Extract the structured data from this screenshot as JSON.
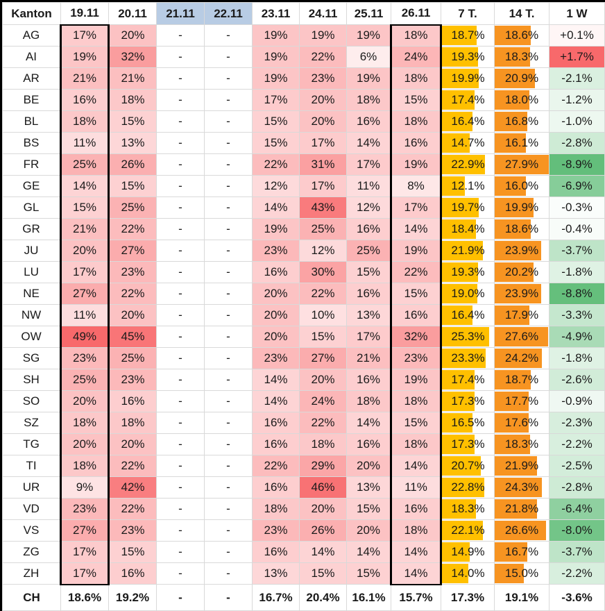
{
  "chart_data": {
    "type": "heatmap",
    "columns": [
      "Kanton",
      "19.11",
      "20.11",
      "21.11",
      "22.11",
      "23.11",
      "24.11",
      "25.11",
      "26.11",
      "7 T.",
      "14 T.",
      "1 W"
    ],
    "highlight_blue_columns": [
      "21.11",
      "22.11"
    ],
    "outlined_columns": [
      "19.11",
      "26.11"
    ],
    "rows": [
      {
        "kanton": "AG",
        "daily": [
          "17%",
          "20%",
          "-",
          "-",
          "19%",
          "19%",
          "19%",
          "18%"
        ],
        "t7": "18.7%",
        "t14": "18.6%",
        "w1": "+0.1%"
      },
      {
        "kanton": "AI",
        "daily": [
          "19%",
          "32%",
          "-",
          "-",
          "19%",
          "22%",
          "6%",
          "24%"
        ],
        "t7": "19.3%",
        "t14": "18.3%",
        "w1": "+1.7%"
      },
      {
        "kanton": "AR",
        "daily": [
          "21%",
          "21%",
          "-",
          "-",
          "19%",
          "23%",
          "19%",
          "18%"
        ],
        "t7": "19.9%",
        "t14": "20.9%",
        "w1": "-2.1%"
      },
      {
        "kanton": "BE",
        "daily": [
          "16%",
          "18%",
          "-",
          "-",
          "17%",
          "20%",
          "18%",
          "15%"
        ],
        "t7": "17.4%",
        "t14": "18.0%",
        "w1": "-1.2%"
      },
      {
        "kanton": "BL",
        "daily": [
          "18%",
          "15%",
          "-",
          "-",
          "15%",
          "20%",
          "16%",
          "18%"
        ],
        "t7": "16.4%",
        "t14": "16.8%",
        "w1": "-1.0%"
      },
      {
        "kanton": "BS",
        "daily": [
          "11%",
          "13%",
          "-",
          "-",
          "15%",
          "17%",
          "14%",
          "16%"
        ],
        "t7": "14.7%",
        "t14": "16.1%",
        "w1": "-2.8%"
      },
      {
        "kanton": "FR",
        "daily": [
          "25%",
          "26%",
          "-",
          "-",
          "22%",
          "31%",
          "17%",
          "19%"
        ],
        "t7": "22.9%",
        "t14": "27.9%",
        "w1": "-8.9%"
      },
      {
        "kanton": "GE",
        "daily": [
          "14%",
          "15%",
          "-",
          "-",
          "12%",
          "17%",
          "11%",
          "8%"
        ],
        "t7": "12.1%",
        "t14": "16.0%",
        "w1": "-6.9%"
      },
      {
        "kanton": "GL",
        "daily": [
          "15%",
          "25%",
          "-",
          "-",
          "14%",
          "43%",
          "12%",
          "17%"
        ],
        "t7": "19.7%",
        "t14": "19.9%",
        "w1": "-0.3%"
      },
      {
        "kanton": "GR",
        "daily": [
          "21%",
          "22%",
          "-",
          "-",
          "19%",
          "25%",
          "16%",
          "14%"
        ],
        "t7": "18.4%",
        "t14": "18.6%",
        "w1": "-0.4%"
      },
      {
        "kanton": "JU",
        "daily": [
          "20%",
          "27%",
          "-",
          "-",
          "23%",
          "12%",
          "25%",
          "19%"
        ],
        "t7": "21.9%",
        "t14": "23.9%",
        "w1": "-3.7%"
      },
      {
        "kanton": "LU",
        "daily": [
          "17%",
          "23%",
          "-",
          "-",
          "16%",
          "30%",
          "15%",
          "22%"
        ],
        "t7": "19.3%",
        "t14": "20.2%",
        "w1": "-1.8%"
      },
      {
        "kanton": "NE",
        "daily": [
          "27%",
          "22%",
          "-",
          "-",
          "20%",
          "22%",
          "16%",
          "15%"
        ],
        "t7": "19.0%",
        "t14": "23.9%",
        "w1": "-8.8%"
      },
      {
        "kanton": "NW",
        "daily": [
          "11%",
          "20%",
          "-",
          "-",
          "20%",
          "10%",
          "13%",
          "16%"
        ],
        "t7": "16.4%",
        "t14": "17.9%",
        "w1": "-3.3%"
      },
      {
        "kanton": "OW",
        "daily": [
          "49%",
          "45%",
          "-",
          "-",
          "20%",
          "15%",
          "17%",
          "32%"
        ],
        "t7": "25.3%",
        "t14": "27.6%",
        "w1": "-4.9%"
      },
      {
        "kanton": "SG",
        "daily": [
          "23%",
          "25%",
          "-",
          "-",
          "23%",
          "27%",
          "21%",
          "23%"
        ],
        "t7": "23.3%",
        "t14": "24.2%",
        "w1": "-1.8%"
      },
      {
        "kanton": "SH",
        "daily": [
          "25%",
          "23%",
          "-",
          "-",
          "14%",
          "20%",
          "16%",
          "19%"
        ],
        "t7": "17.4%",
        "t14": "18.7%",
        "w1": "-2.6%"
      },
      {
        "kanton": "SO",
        "daily": [
          "20%",
          "16%",
          "-",
          "-",
          "14%",
          "24%",
          "18%",
          "18%"
        ],
        "t7": "17.3%",
        "t14": "17.7%",
        "w1": "-0.9%"
      },
      {
        "kanton": "SZ",
        "daily": [
          "18%",
          "18%",
          "-",
          "-",
          "16%",
          "22%",
          "14%",
          "15%"
        ],
        "t7": "16.5%",
        "t14": "17.6%",
        "w1": "-2.3%"
      },
      {
        "kanton": "TG",
        "daily": [
          "20%",
          "20%",
          "-",
          "-",
          "16%",
          "18%",
          "16%",
          "18%"
        ],
        "t7": "17.3%",
        "t14": "18.3%",
        "w1": "-2.2%"
      },
      {
        "kanton": "TI",
        "daily": [
          "18%",
          "22%",
          "-",
          "-",
          "22%",
          "29%",
          "20%",
          "14%"
        ],
        "t7": "20.7%",
        "t14": "21.9%",
        "w1": "-2.5%"
      },
      {
        "kanton": "UR",
        "daily": [
          "9%",
          "42%",
          "-",
          "-",
          "16%",
          "46%",
          "13%",
          "11%"
        ],
        "t7": "22.8%",
        "t14": "24.3%",
        "w1": "-2.8%"
      },
      {
        "kanton": "VD",
        "daily": [
          "23%",
          "22%",
          "-",
          "-",
          "18%",
          "20%",
          "15%",
          "16%"
        ],
        "t7": "18.3%",
        "t14": "21.8%",
        "w1": "-6.4%"
      },
      {
        "kanton": "VS",
        "daily": [
          "27%",
          "23%",
          "-",
          "-",
          "23%",
          "26%",
          "20%",
          "18%"
        ],
        "t7": "22.1%",
        "t14": "26.6%",
        "w1": "-8.0%"
      },
      {
        "kanton": "ZG",
        "daily": [
          "17%",
          "15%",
          "-",
          "-",
          "16%",
          "14%",
          "14%",
          "14%"
        ],
        "t7": "14.9%",
        "t14": "16.7%",
        "w1": "-3.7%"
      },
      {
        "kanton": "ZH",
        "daily": [
          "17%",
          "16%",
          "-",
          "-",
          "13%",
          "15%",
          "15%",
          "14%"
        ],
        "t7": "14.0%",
        "t14": "15.0%",
        "w1": "-2.2%"
      }
    ],
    "total_row": {
      "kanton": "CH",
      "daily": [
        "18.6%",
        "19.2%",
        "-",
        "-",
        "16.7%",
        "20.4%",
        "16.1%",
        "15.7%"
      ],
      "t7": "17.3%",
      "t14": "19.1%",
      "w1": "-3.6%"
    },
    "colors": {
      "heat_red_max": "#F8696B",
      "bar_7t": "#FFC000",
      "bar_14t": "#F79421",
      "green_max": "#63BE7B",
      "header_blue": "#B8CCE4",
      "outline": "#000000"
    }
  }
}
